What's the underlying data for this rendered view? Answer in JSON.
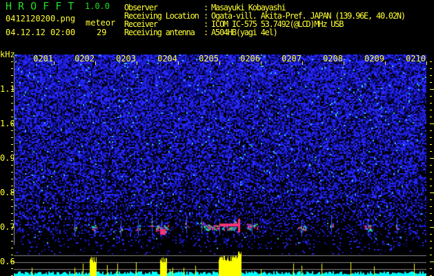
{
  "app": {
    "name": "H R O F F T",
    "version": "1.0.0"
  },
  "file": {
    "name": "0412120200.png",
    "datetime": "04.12.12 02:00"
  },
  "meteor": {
    "label": "meteor",
    "count": "29"
  },
  "info": [
    {
      "label": "Observer",
      "value": "Masayuki Kobayashi"
    },
    {
      "label": "Receiving Location",
      "value": "Ogata-vill. Akita-Pref. JAPAN (139.96E, 40.02N)"
    },
    {
      "label": "Receiver",
      "value": "ICOM IC-575 53.7492(@LCD)MHz USB"
    },
    {
      "label": "Receiving antenna",
      "value": "A504HB(yagi 4el)"
    }
  ],
  "axis": {
    "unit": "kHz",
    "y_ticks": [
      "1.1",
      "1.0",
      "0.9",
      "0.8",
      "0.7",
      "0.6"
    ],
    "time_ticks": [
      "0201",
      "0202",
      "0203",
      "0204",
      "0205",
      "0206",
      "0207",
      "0208",
      "0209",
      "0210"
    ]
  },
  "colors": {
    "text": "#ffff33",
    "title": "#22dd22",
    "noise": "#1a1aff",
    "bars_low": "#00ffff",
    "bars_high": "#ffff00"
  }
}
